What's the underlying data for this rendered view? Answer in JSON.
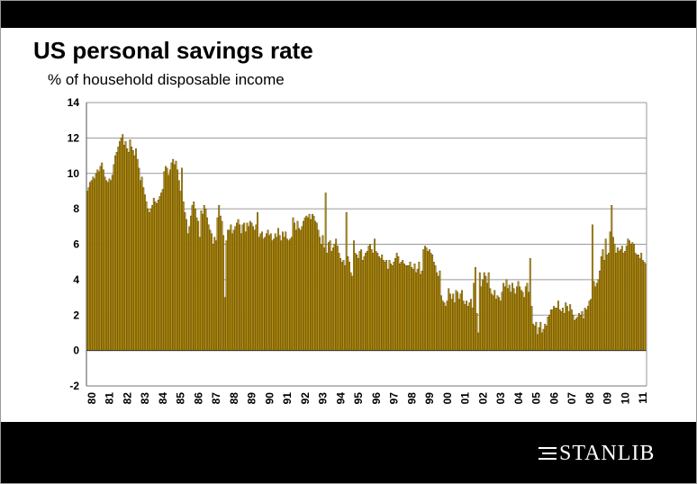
{
  "title": "US personal savings rate",
  "subtitle": "% of household disposable income",
  "logo": {
    "text": "STANLIB",
    "icon": "stanlib-lines-icon"
  },
  "colors": {
    "bar_fill": "#b8900e",
    "bar_stroke": "#3d2e00",
    "grid": "#9a9a9a",
    "background": "#ffffff",
    "bars": "#000000"
  },
  "chart_data": {
    "type": "bar",
    "title": "US personal savings rate",
    "subtitle": "% of household disposable income",
    "ylim": [
      -2,
      14
    ],
    "yticks": [
      -2,
      0,
      2,
      4,
      6,
      8,
      10,
      12,
      14
    ],
    "grid": true,
    "xtick_labels": [
      "80",
      "81",
      "82",
      "83",
      "84",
      "85",
      "86",
      "87",
      "88",
      "89",
      "90",
      "91",
      "92",
      "93",
      "94",
      "95",
      "96",
      "97",
      "98",
      "99",
      "00",
      "01",
      "02",
      "03",
      "04",
      "05",
      "06",
      "07",
      "08",
      "09",
      "10",
      "11"
    ],
    "frequency": "monthly",
    "x_start": "1980-01",
    "yearly_monthly_values": [
      [
        9.0,
        9.2,
        9.5,
        9.6,
        9.8,
        9.7,
        10.0,
        10.2,
        10.1,
        10.4,
        10.6,
        10.2
      ],
      [
        9.8,
        9.6,
        9.5,
        9.7,
        9.6,
        9.9,
        10.5,
        11.0,
        11.2,
        11.5,
        11.8,
        12.0
      ],
      [
        12.2,
        11.6,
        11.8,
        11.4,
        11.2,
        11.9,
        11.5,
        11.3,
        11.0,
        11.4,
        10.8,
        10.3
      ],
      [
        9.6,
        9.8,
        9.2,
        8.8,
        8.4,
        8.0,
        7.8,
        8.0,
        8.2,
        8.6,
        8.4,
        8.3
      ],
      [
        8.5,
        8.7,
        8.9,
        9.1,
        10.1,
        10.4,
        10.3,
        9.9,
        10.2,
        10.6,
        10.8,
        10.5
      ],
      [
        10.7,
        10.2,
        9.6,
        9.0,
        10.3,
        8.4,
        7.8,
        7.4,
        6.6,
        7.0,
        7.6,
        8.2
      ],
      [
        8.4,
        8.0,
        7.5,
        7.3,
        6.4,
        7.9,
        7.7,
        8.2,
        8.0,
        7.5,
        7.1,
        6.8
      ],
      [
        6.6,
        6.0,
        6.4,
        6.2,
        7.5,
        8.2,
        7.6,
        7.3,
        6.5,
        3.0,
        6.2,
        6.8
      ],
      [
        6.8,
        7.1,
        6.6,
        6.8,
        7.0,
        7.2,
        7.4,
        7.1,
        6.6,
        7.1,
        7.2,
        6.7
      ],
      [
        7.2,
        7.0,
        7.3,
        7.2,
        7.0,
        6.8,
        7.1,
        7.8,
        6.4,
        6.6,
        6.7,
        6.3
      ],
      [
        6.4,
        6.6,
        6.8,
        6.5,
        6.6,
        6.2,
        6.3,
        6.6,
        6.4,
        6.9,
        6.5,
        6.2
      ],
      [
        6.7,
        6.4,
        6.7,
        6.3,
        6.2,
        6.3,
        6.4,
        7.5,
        7.2,
        6.8,
        7.3,
        6.9
      ],
      [
        6.8,
        7.0,
        7.3,
        7.5,
        7.6,
        7.5,
        7.7,
        7.4,
        7.7,
        7.6,
        7.3,
        7.2
      ],
      [
        6.8,
        6.4,
        6.0,
        6.5,
        5.8,
        8.9,
        5.5,
        6.1,
        6.2,
        5.6,
        5.8,
        6.0
      ],
      [
        6.3,
        5.9,
        5.5,
        5.2,
        5.0,
        5.1,
        4.8,
        7.8,
        5.3,
        5.0,
        4.4,
        4.2
      ],
      [
        6.2,
        5.5,
        5.4,
        5.2,
        5.6,
        5.7,
        5.1,
        5.3,
        5.5,
        5.6,
        5.9,
        6.0
      ],
      [
        5.7,
        5.5,
        6.3,
        5.6,
        5.5,
        5.3,
        5.2,
        5.4,
        5.1,
        5.0,
        5.1,
        4.6
      ],
      [
        5.1,
        4.9,
        4.8,
        5.0,
        5.2,
        5.5,
        5.3,
        4.9,
        5.0,
        5.1,
        4.9,
        4.8
      ],
      [
        4.8,
        4.8,
        5.0,
        4.7,
        4.6,
        4.9,
        4.4,
        4.6,
        5.0,
        4.3,
        4.5,
        5.7
      ],
      [
        5.9,
        5.8,
        5.6,
        5.7,
        5.5,
        5.4,
        5.0,
        4.8,
        4.4,
        4.2,
        4.5,
        3.1
      ],
      [
        2.8,
        2.7,
        2.5,
        2.8,
        3.5,
        3.2,
        2.9,
        3.2,
        2.7,
        3.4,
        3.3,
        2.9
      ],
      [
        3.2,
        3.4,
        2.8,
        2.6,
        2.8,
        2.5,
        2.7,
        2.9,
        2.4,
        3.8,
        4.7,
        2.1
      ],
      [
        1.0,
        4.4,
        3.6,
        4.0,
        4.4,
        4.2,
        3.8,
        4.4,
        3.5,
        3.2,
        3.1,
        3.4
      ],
      [
        2.9,
        3.1,
        3.0,
        2.8,
        3.3,
        3.8,
        3.6,
        4.0,
        3.5,
        3.7,
        3.3,
        3.8
      ],
      [
        3.5,
        3.2,
        3.6,
        3.9,
        3.6,
        3.4,
        3.3,
        3.0,
        3.6,
        3.8,
        3.3,
        5.2
      ],
      [
        2.5,
        1.5,
        1.4,
        1.6,
        0.9,
        1.3,
        1.6,
        1.0,
        1.2,
        1.5,
        1.4,
        1.9
      ],
      [
        2.0,
        2.3,
        2.3,
        2.5,
        2.4,
        2.4,
        2.8,
        2.3,
        2.2,
        2.4,
        2.1,
        2.7
      ],
      [
        2.5,
        2.2,
        2.6,
        2.3,
        2.0,
        1.7,
        1.8,
        1.9,
        2.1,
        2.0,
        2.2,
        1.8
      ],
      [
        2.4,
        2.3,
        2.5,
        2.8,
        2.9,
        7.1,
        3.9,
        3.6,
        3.8,
        4.0,
        4.5,
        5.3
      ],
      [
        5.7,
        5.1,
        6.3,
        5.4,
        5.5,
        6.7,
        8.2,
        6.4,
        6.0,
        5.5,
        5.8,
        5.6
      ],
      [
        5.7,
        5.9,
        5.5,
        5.6,
        5.9,
        6.3,
        6.2,
        6.0,
        6.1,
        6.0,
        5.5,
        5.4
      ],
      [
        5.4,
        5.2,
        5.5,
        5.1,
        5.0,
        4.9
      ]
    ]
  }
}
